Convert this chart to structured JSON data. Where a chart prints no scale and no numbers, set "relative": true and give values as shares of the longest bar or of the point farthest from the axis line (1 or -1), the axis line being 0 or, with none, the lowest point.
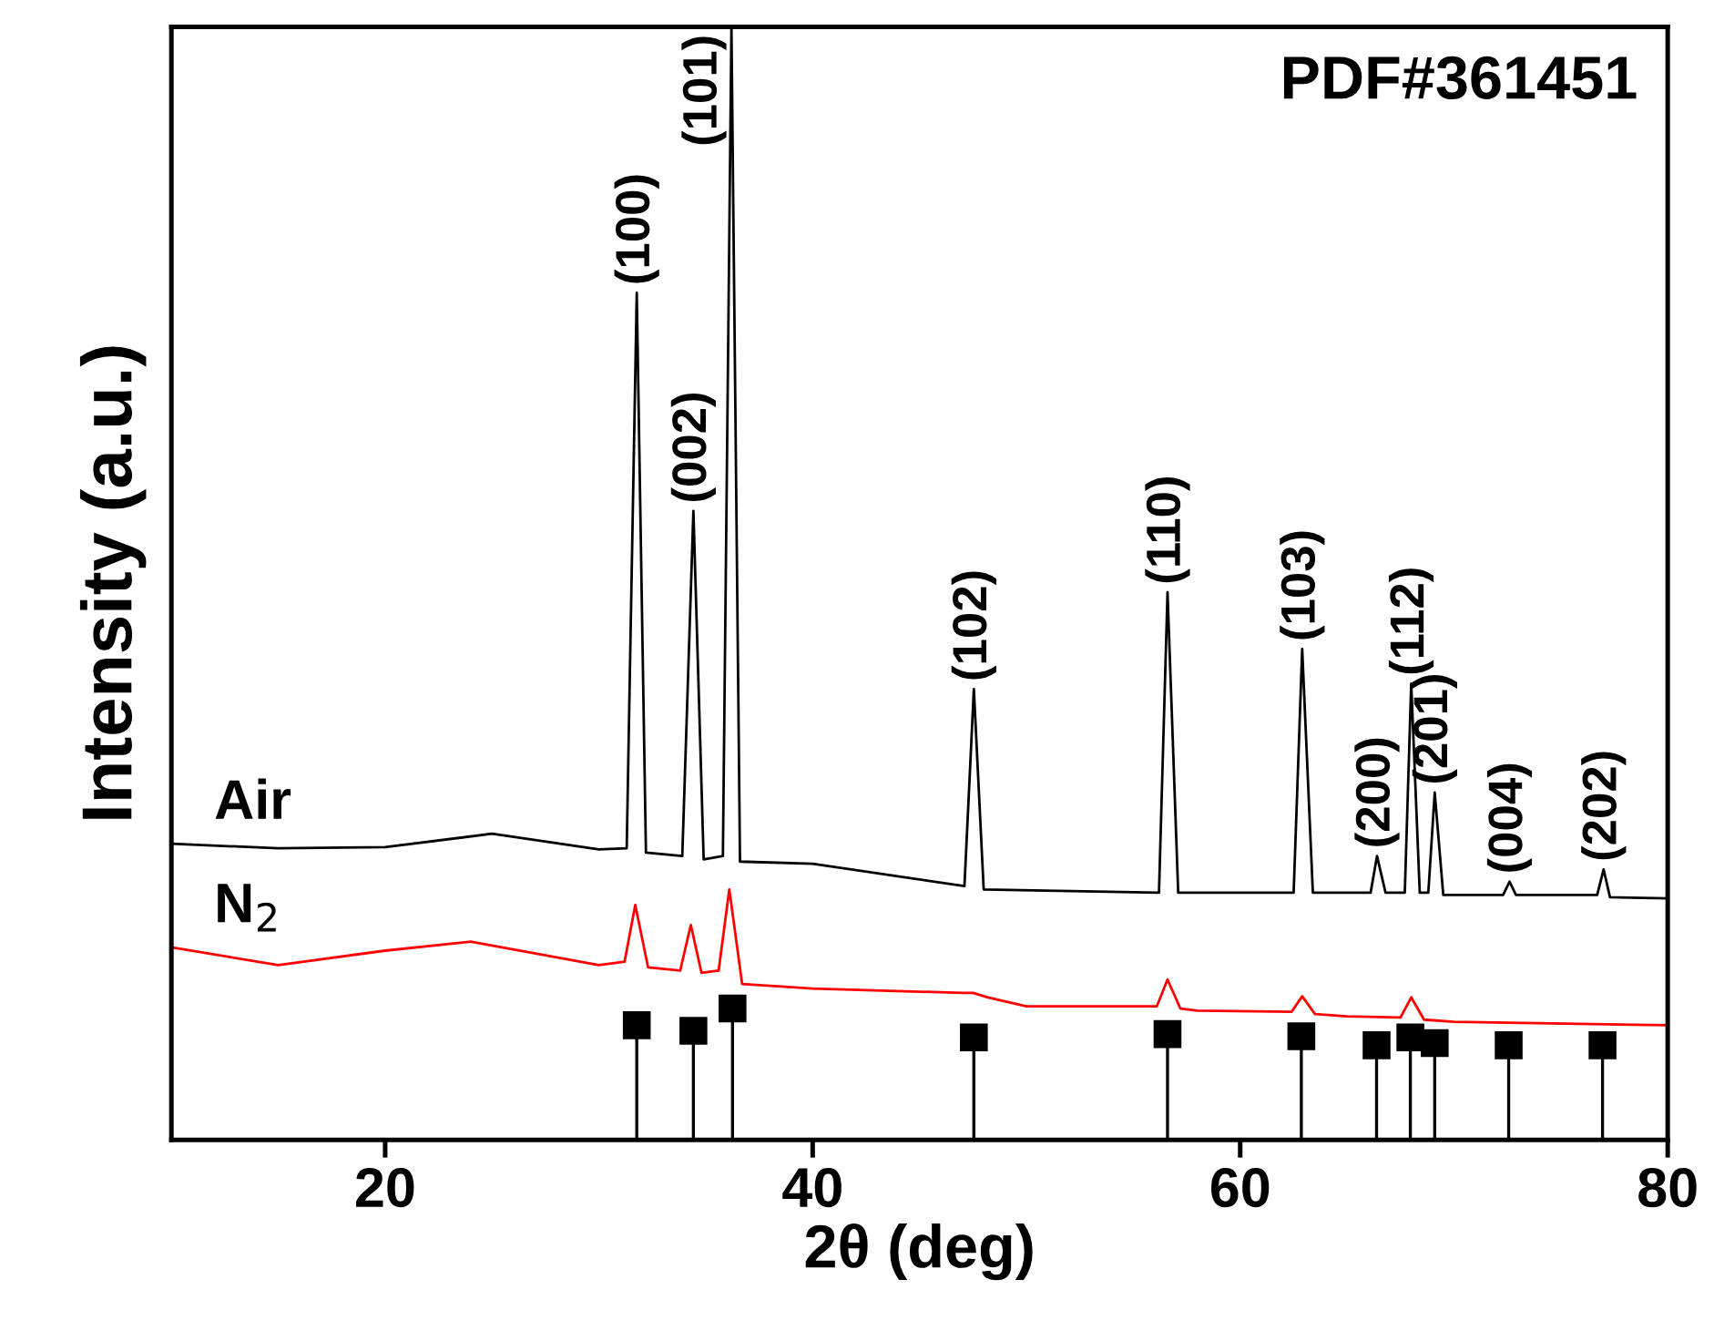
{
  "chart_data": {
    "type": "line",
    "relative": true,
    "xlabel": "2θ (deg)",
    "ylabel": "Intensity (a.u.)",
    "xlim": [
      10,
      80
    ],
    "xticks": [
      20,
      40,
      60,
      80
    ],
    "tick_labels": "x",
    "grid": false,
    "legend": false,
    "series": [
      {
        "name": "Air",
        "color": "#000000",
        "x": [
          10,
          15,
          20,
          25,
          30,
          31.3,
          31.77,
          32.2,
          33.9,
          34.42,
          34.9,
          35.8,
          36.2,
          36.6,
          40,
          47.1,
          47.54,
          48,
          56.2,
          56.6,
          57.1,
          62.5,
          62.9,
          63.4,
          66.1,
          66.4,
          66.8,
          67.7,
          68.0,
          68.4,
          68.8,
          69.1,
          69.5,
          72.3,
          72.6,
          72.9,
          76.7,
          77.0,
          77.3,
          80
        ],
        "values": [
          0.266,
          0.262,
          0.263,
          0.275,
          0.261,
          0.262,
          0.761,
          0.258,
          0.255,
          0.565,
          0.252,
          0.255,
          1.0,
          0.25,
          0.248,
          0.228,
          0.405,
          0.225,
          0.222,
          0.492,
          0.222,
          0.222,
          0.441,
          0.222,
          0.222,
          0.255,
          0.222,
          0.222,
          0.41,
          0.222,
          0.222,
          0.312,
          0.22,
          0.22,
          0.232,
          0.22,
          0.22,
          0.243,
          0.218,
          0.217
        ]
      },
      {
        "name": "N$_{2}$",
        "color": "#ff0000",
        "x": [
          10,
          15,
          20,
          24,
          30,
          31.2,
          31.7,
          32.3,
          33.8,
          34.3,
          34.8,
          35.6,
          36.1,
          36.7,
          40,
          47.0,
          47.5,
          48.2,
          50,
          56.1,
          56.6,
          57.2,
          58,
          62.4,
          62.9,
          63.5,
          65,
          67.5,
          68,
          68.6,
          70,
          80
        ],
        "values": [
          0.173,
          0.157,
          0.17,
          0.178,
          0.157,
          0.16,
          0.211,
          0.155,
          0.152,
          0.193,
          0.15,
          0.152,
          0.225,
          0.14,
          0.136,
          0.132,
          0.132,
          0.128,
          0.12,
          0.12,
          0.144,
          0.118,
          0.116,
          0.115,
          0.129,
          0.113,
          0.111,
          0.11,
          0.128,
          0.108,
          0.106,
          0.103
        ]
      },
      {
        "color": "#000000",
        "type": "lollipop",
        "marker": "square",
        "x": [
          31.77,
          34.42,
          36.25,
          47.54,
          56.6,
          62.86,
          66.38,
          67.96,
          69.1,
          72.56,
          76.95
        ],
        "values": [
          0.103,
          0.098,
          0.118,
          0.092,
          0.095,
          0.093,
          0.085,
          0.092,
          0.087,
          0.085,
          0.085
        ]
      }
    ],
    "annotations": [
      "PDF#361451",
      {
        "text": "(100)",
        "x": 31.77,
        "y": 0.761
      },
      {
        "text": "(002)",
        "x": 34.42,
        "y": 0.565
      },
      {
        "text": "(101)",
        "x": 36.2,
        "y": 1.0
      },
      {
        "text": "(102)",
        "x": 47.54,
        "y": 0.405
      },
      {
        "text": "(110)",
        "x": 56.6,
        "y": 0.492
      },
      {
        "text": "(103)",
        "x": 62.9,
        "y": 0.441
      },
      {
        "text": "(200)",
        "x": 66.4,
        "y": 0.255
      },
      {
        "text": "(112)",
        "x": 68.0,
        "y": 0.41
      },
      {
        "text": "(201)",
        "x": 69.1,
        "y": 0.312
      },
      {
        "text": "(004)",
        "x": 72.6,
        "y": 0.232
      },
      {
        "text": "(202)",
        "x": 77.0,
        "y": 0.243
      }
    ]
  }
}
